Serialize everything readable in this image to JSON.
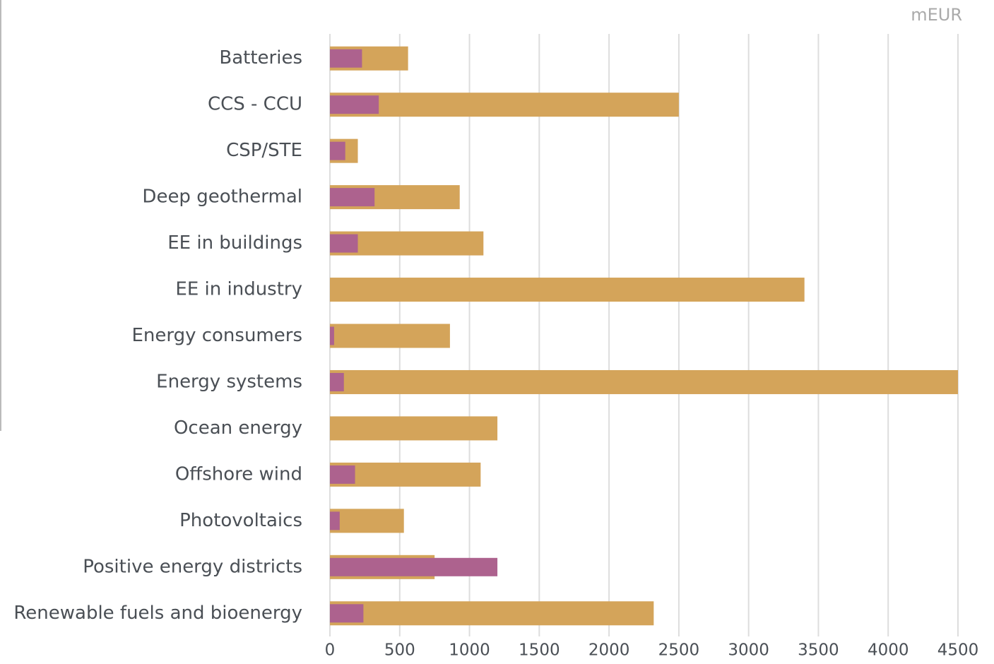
{
  "chart_data": {
    "type": "bar",
    "orientation": "horizontal",
    "unit": "mEUR",
    "categories": [
      "Batteries",
      "CCS - CCU",
      "CSP/STE",
      "Deep geothermal",
      "EE in buildings",
      "EE in industry",
      "Energy consumers",
      "Energy systems",
      "Ocean energy",
      "Offshore wind",
      "Photovoltaics",
      "Positive energy districts",
      "Renewable fuels and bioenergy"
    ],
    "series": [
      {
        "color": "#d4a45a",
        "values": [
          560,
          2500,
          200,
          930,
          1100,
          3400,
          860,
          4500,
          1200,
          1080,
          530,
          750,
          2320
        ]
      },
      {
        "color": "#ad628e",
        "values": [
          230,
          350,
          110,
          320,
          200,
          0,
          30,
          100,
          0,
          180,
          70,
          1200,
          240
        ]
      }
    ],
    "xlim": [
      0,
      4500
    ],
    "xticks": [
      0,
      500,
      1000,
      1500,
      2000,
      2500,
      3000,
      3500,
      4000,
      4500
    ],
    "grid": true
  }
}
